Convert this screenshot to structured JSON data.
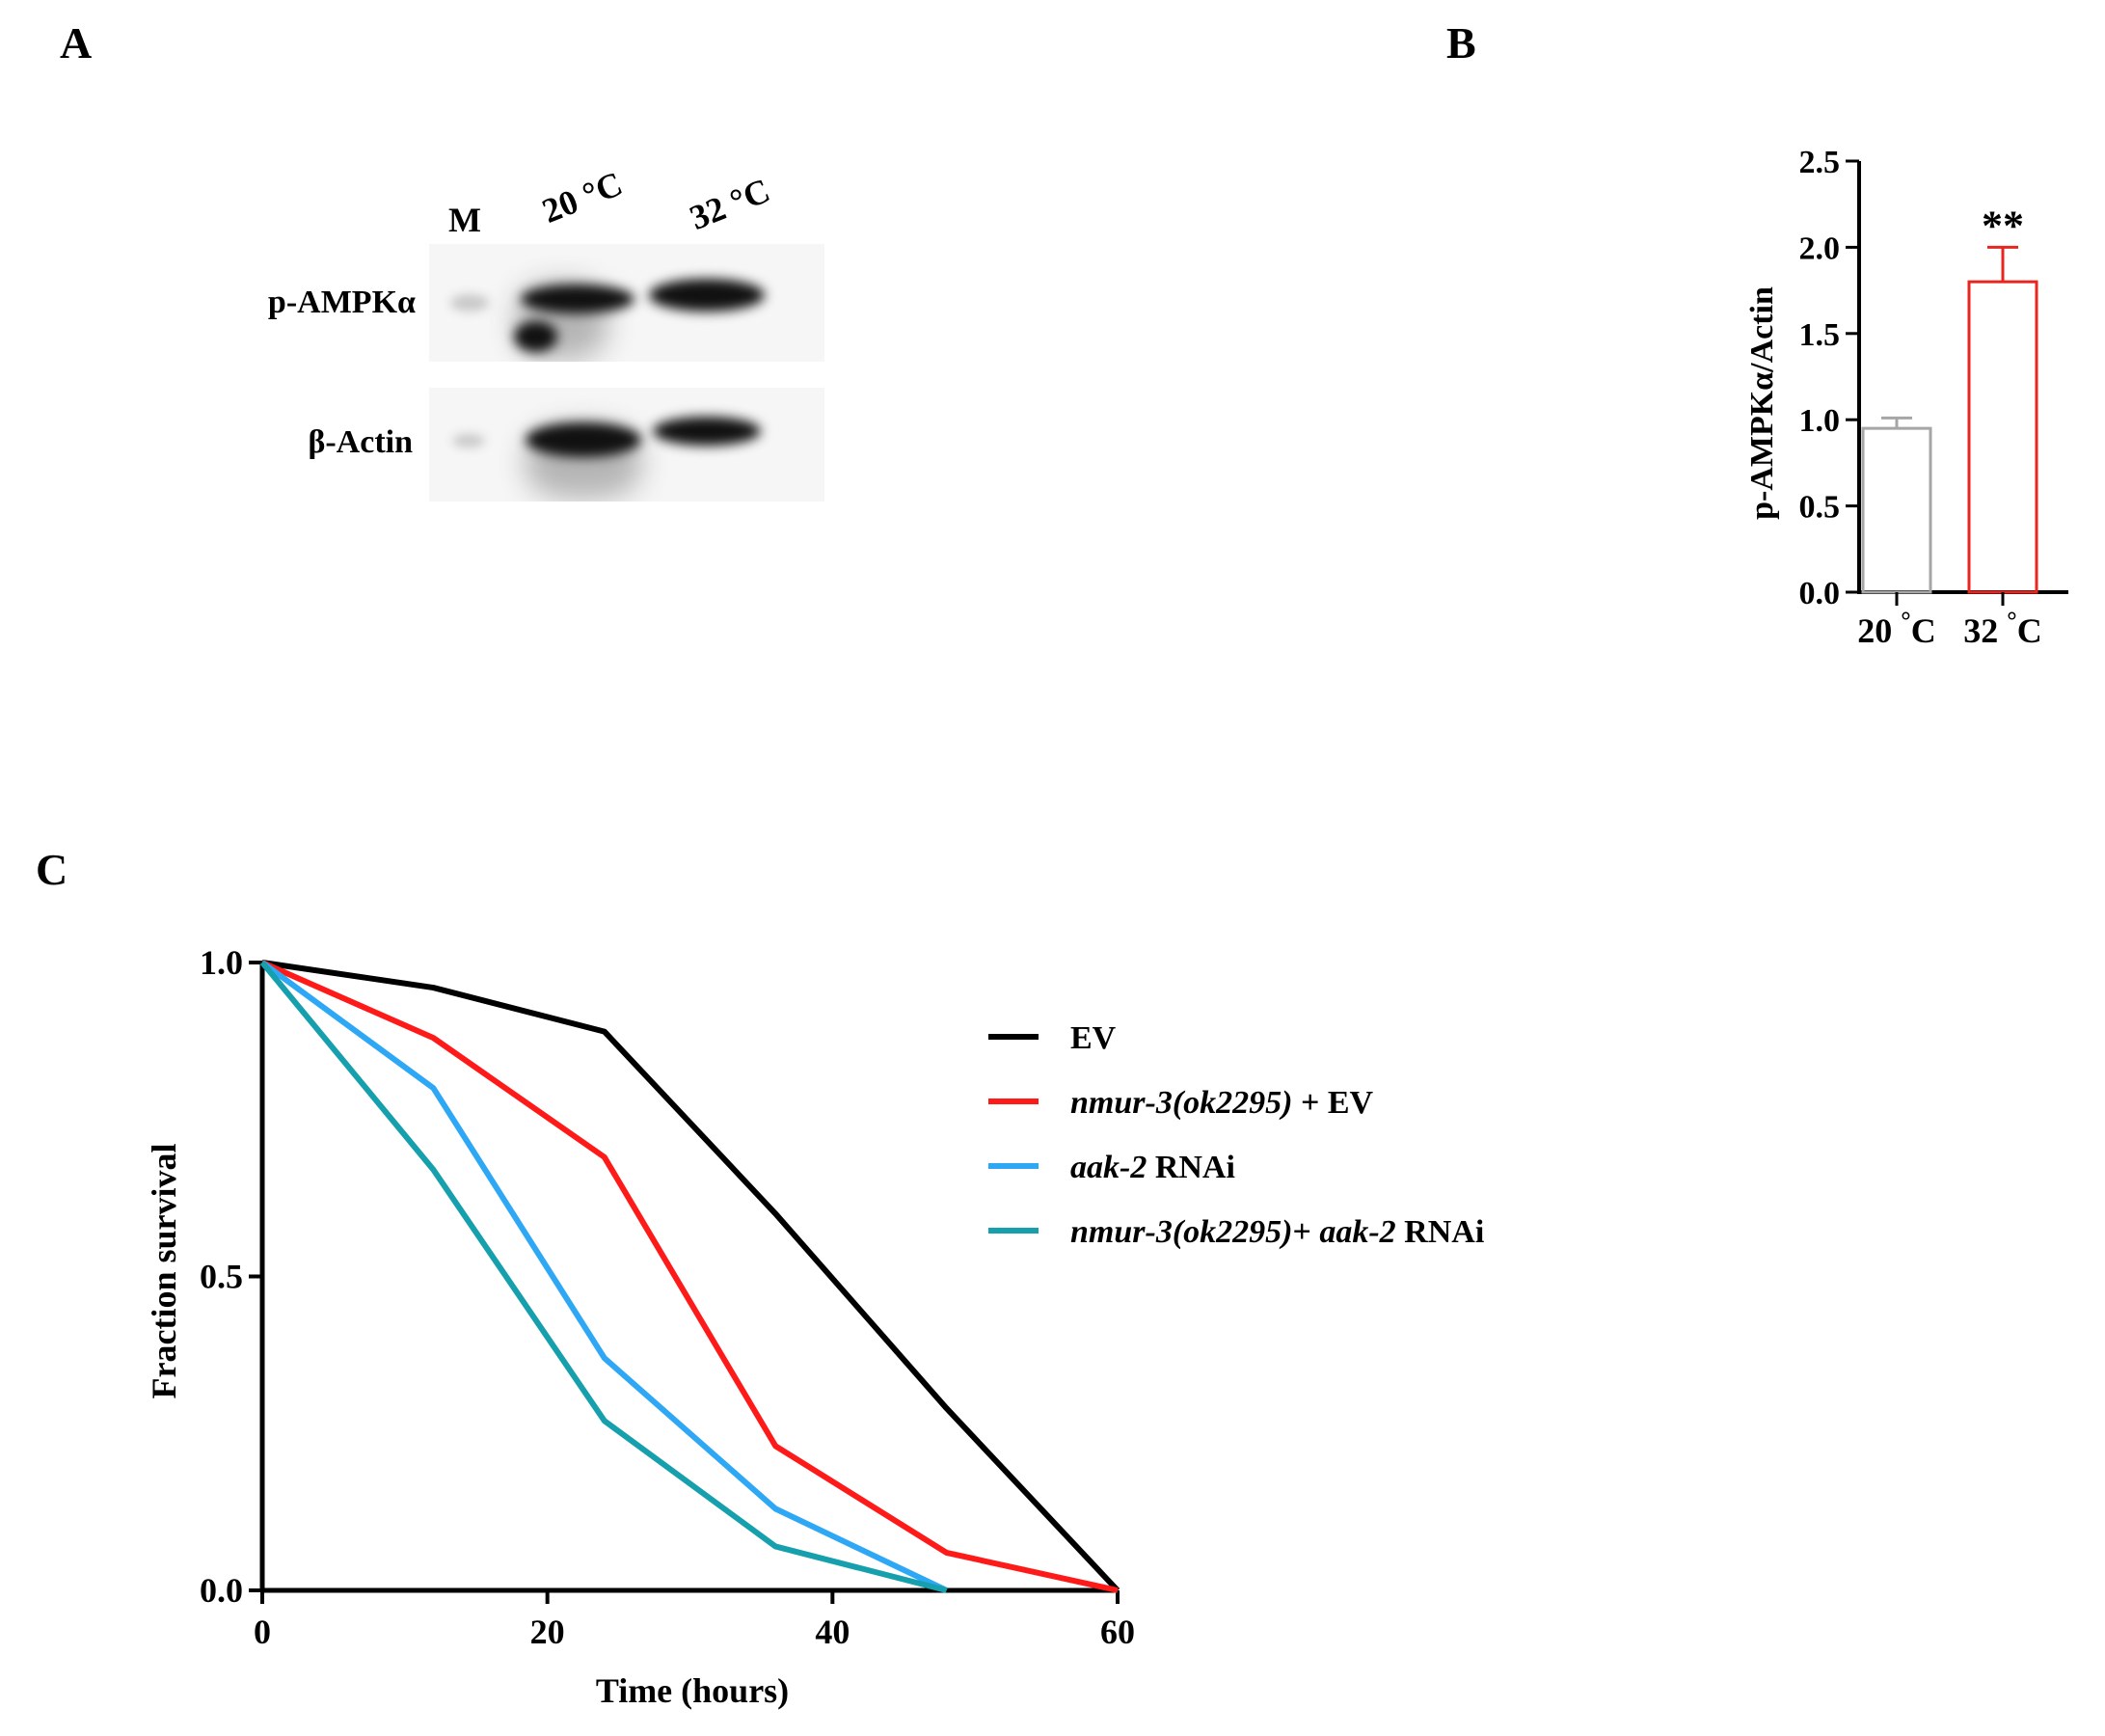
{
  "panels": {
    "a": "A",
    "b": "B",
    "c": "C"
  },
  "blot": {
    "lanes": [
      "M",
      "20 °C",
      "32 °C"
    ],
    "rows": [
      "p-AMPKα",
      "β-Actin"
    ]
  },
  "chart_data": [
    {
      "type": "bar",
      "panel": "B",
      "categories": [
        "20 °C",
        "32 °C"
      ],
      "values": [
        0.95,
        1.8
      ],
      "errors": [
        0.06,
        0.2
      ],
      "colors": [
        "#a6a6a6",
        "#e8261f"
      ],
      "annotations": [
        "",
        "**"
      ],
      "ylabel": "p-AMPKα/Actin",
      "xlabel": "",
      "ylim": [
        0,
        2.5
      ],
      "yticks": [
        0.0,
        0.5,
        1.0,
        1.5,
        2.0,
        2.5
      ],
      "ytick_labels": [
        "0.0",
        "0.5",
        "1.0",
        "1.5",
        "2.0",
        "2.5"
      ]
    },
    {
      "type": "line",
      "panel": "C",
      "xlabel": "Time (hours)",
      "ylabel": "Fraction survival",
      "xlim": [
        0,
        60
      ],
      "ylim": [
        0,
        1.0
      ],
      "xticks": [
        0,
        20,
        40,
        60
      ],
      "xtick_labels": [
        "0",
        "20",
        "40",
        "60"
      ],
      "yticks": [
        0.0,
        0.5,
        1.0
      ],
      "ytick_labels": [
        "0.0",
        "0.5",
        "1.0"
      ],
      "series": [
        {
          "name": "EV",
          "legend_parts": [
            {
              "text": "EV",
              "italic": false
            }
          ],
          "color": "#000000",
          "x": [
            0,
            12,
            24,
            36,
            48,
            60
          ],
          "y": [
            1.0,
            0.96,
            0.89,
            0.6,
            0.29,
            0.0
          ]
        },
        {
          "name": "nmur-3(ok2295) + EV",
          "legend_parts": [
            {
              "text": "nmur-3(ok2295)",
              "italic": true
            },
            {
              "text": " + EV",
              "italic": false
            }
          ],
          "color": "#ff1a1a",
          "x": [
            0,
            12,
            24,
            36,
            48,
            60
          ],
          "y": [
            1.0,
            0.88,
            0.69,
            0.23,
            0.06,
            0.0
          ]
        },
        {
          "name": "aak-2 RNAi",
          "legend_parts": [
            {
              "text": "aak-2",
              "italic": true
            },
            {
              "text": " RNAi",
              "italic": false
            }
          ],
          "color": "#2ea8f5",
          "x": [
            0,
            12,
            24,
            36,
            48
          ],
          "y": [
            1.0,
            0.8,
            0.37,
            0.13,
            0.0
          ]
        },
        {
          "name": "nmur-3(ok2295)+ aak-2 RNAi",
          "legend_parts": [
            {
              "text": "nmur-3(ok2295)",
              "italic": true
            },
            {
              "text": "+ ",
              "italic": false
            },
            {
              "text": "aak-2",
              "italic": true
            },
            {
              "text": " RNAi",
              "italic": false
            }
          ],
          "color": "#16a0ad",
          "x": [
            0,
            12,
            24,
            36,
            48
          ],
          "y": [
            1.0,
            0.67,
            0.27,
            0.07,
            0.0
          ]
        }
      ]
    }
  ]
}
